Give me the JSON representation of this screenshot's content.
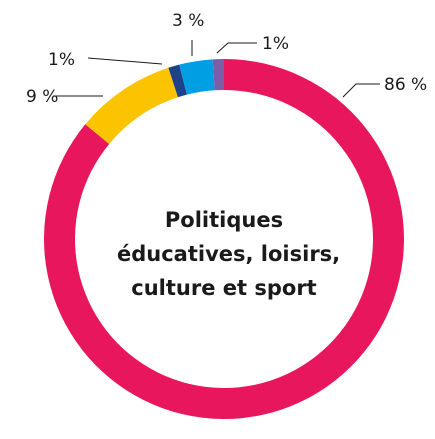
{
  "chart_data": {
    "type": "pie",
    "title_lines": [
      "Politiques",
      "éducatives, loisirs,",
      "culture et sport"
    ],
    "slices": [
      {
        "value": 86,
        "label": "86 %",
        "color": "#e8175d"
      },
      {
        "value": 9,
        "label": "9 %",
        "color": "#fcc400"
      },
      {
        "value": 1,
        "label": "1%",
        "color": "#1d4289"
      },
      {
        "value": 3,
        "label": "3 %",
        "color": "#009fe3"
      },
      {
        "value": 1,
        "label": "1%",
        "color": "#7b5ea7"
      }
    ],
    "legend": false,
    "grid": false
  }
}
